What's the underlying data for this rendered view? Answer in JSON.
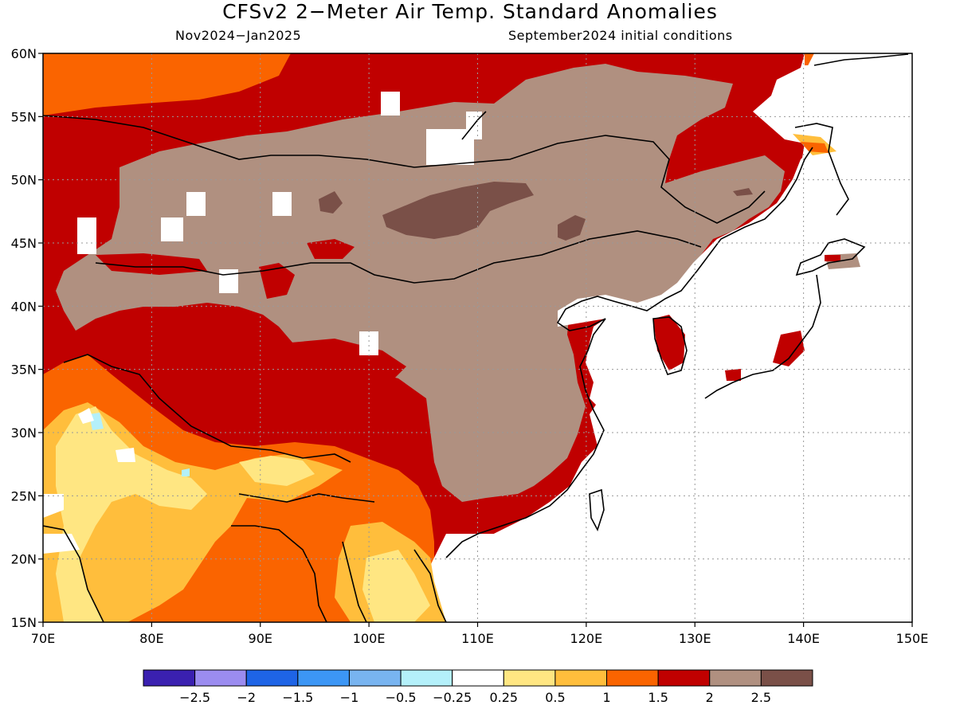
{
  "title": "CFSv2 2−Meter Air Temp. Standard Anomalies",
  "subtitle_left": "Nov2024−Jan2025",
  "subtitle_right": "September2024 initial conditions",
  "lat_labels": [
    "60N",
    "55N",
    "50N",
    "45N",
    "40N",
    "35N",
    "30N",
    "25N",
    "20N",
    "15N"
  ],
  "lon_labels": [
    "70E",
    "80E",
    "90E",
    "100E",
    "110E",
    "120E",
    "130E",
    "140E",
    "150E"
  ],
  "colorbar": {
    "colors": [
      "#3a20b0",
      "#9b8cf0",
      "#1e64e6",
      "#3c96f5",
      "#78b4f0",
      "#b4f0fa",
      "#ffffff",
      "#ffe682",
      "#ffbe3c",
      "#fa6400",
      "#c00000",
      "#b09080",
      "#7a5048"
    ],
    "labels": [
      "−2.5",
      "−2",
      "−1.5",
      "−1",
      "−0.5",
      "−0.25",
      "0.25",
      "0.5",
      "1",
      "1.5",
      "2",
      "2.5"
    ]
  },
  "palette": {
    "c1": "#ffe682",
    "c1b": "#ffbe3c",
    "c15": "#fa6400",
    "c2": "#c00000",
    "c25": "#b09080",
    "c3": "#7a5048",
    "light_blue": "#b4f0fa",
    "land_line": "#000000"
  }
}
